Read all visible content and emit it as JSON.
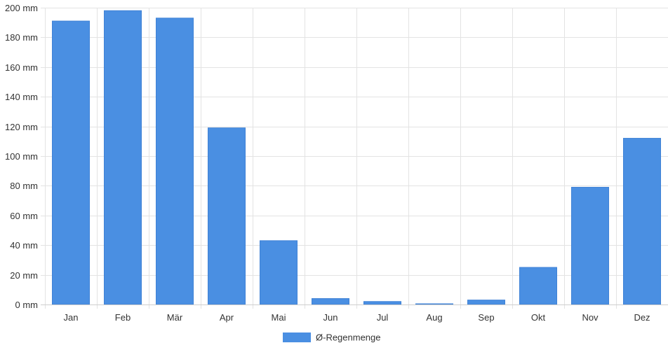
{
  "chart_data": {
    "type": "bar",
    "categories": [
      "Jan",
      "Feb",
      "Mär",
      "Apr",
      "Mai",
      "Jun",
      "Jul",
      "Aug",
      "Sep",
      "Okt",
      "Nov",
      "Dez"
    ],
    "series": [
      {
        "name": "Ø-Regenmenge",
        "values": [
          191,
          198,
          193,
          119,
          43,
          4,
          2,
          0.3,
          3,
          25,
          79,
          112
        ],
        "color": "#4a8fe2"
      }
    ],
    "y_tick_values": [
      0,
      20,
      40,
      60,
      80,
      100,
      120,
      140,
      160,
      180,
      200
    ],
    "y_tick_labels": [
      "0 mm",
      "20 mm",
      "40 mm",
      "60 mm",
      "80 mm",
      "100 mm",
      "120 mm",
      "140 mm",
      "160 mm",
      "180 mm",
      "200 mm"
    ],
    "ylim": [
      0,
      200
    ],
    "grid": true,
    "legend_position": "bottom-center"
  }
}
